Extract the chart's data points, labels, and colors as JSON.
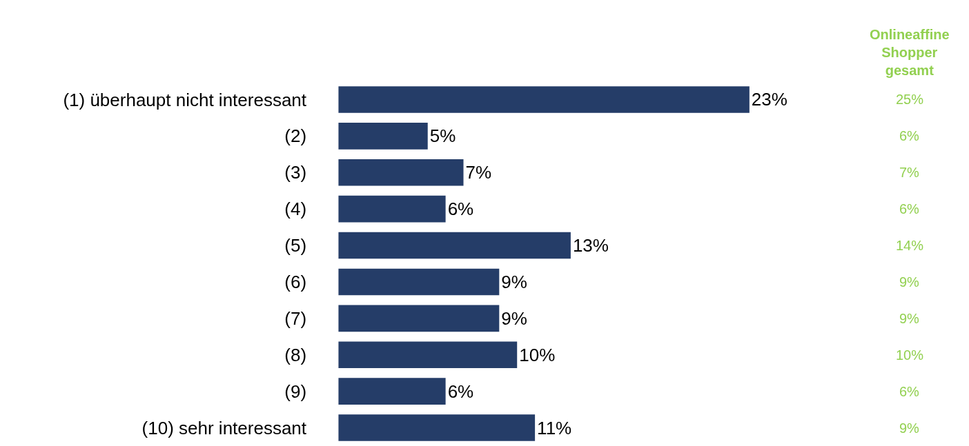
{
  "chart_data": {
    "type": "bar",
    "orientation": "horizontal",
    "categories": [
      "(1) überhaupt nicht interessant",
      "(2)",
      "(3)",
      "(4)",
      "(5)",
      "(6)",
      "(7)",
      "(8)",
      "(9)",
      "(10) sehr interessant"
    ],
    "series": [
      {
        "color": "#253d68",
        "values": [
          23,
          5,
          7,
          6,
          13,
          9,
          9,
          10,
          6,
          11
        ],
        "value_labels": [
          "23%",
          "5%",
          "7%",
          "6%",
          "13%",
          "9%",
          "9%",
          "10%",
          "6%",
          "11%"
        ]
      }
    ],
    "annotations": [
      "Onlineaffine Shopper gesamt",
      "25%",
      "6%",
      "7%",
      "6%",
      "14%",
      "9%",
      "9%",
      "10%",
      "6%",
      "9%"
    ],
    "legend": false,
    "tick_labels": "y"
  }
}
